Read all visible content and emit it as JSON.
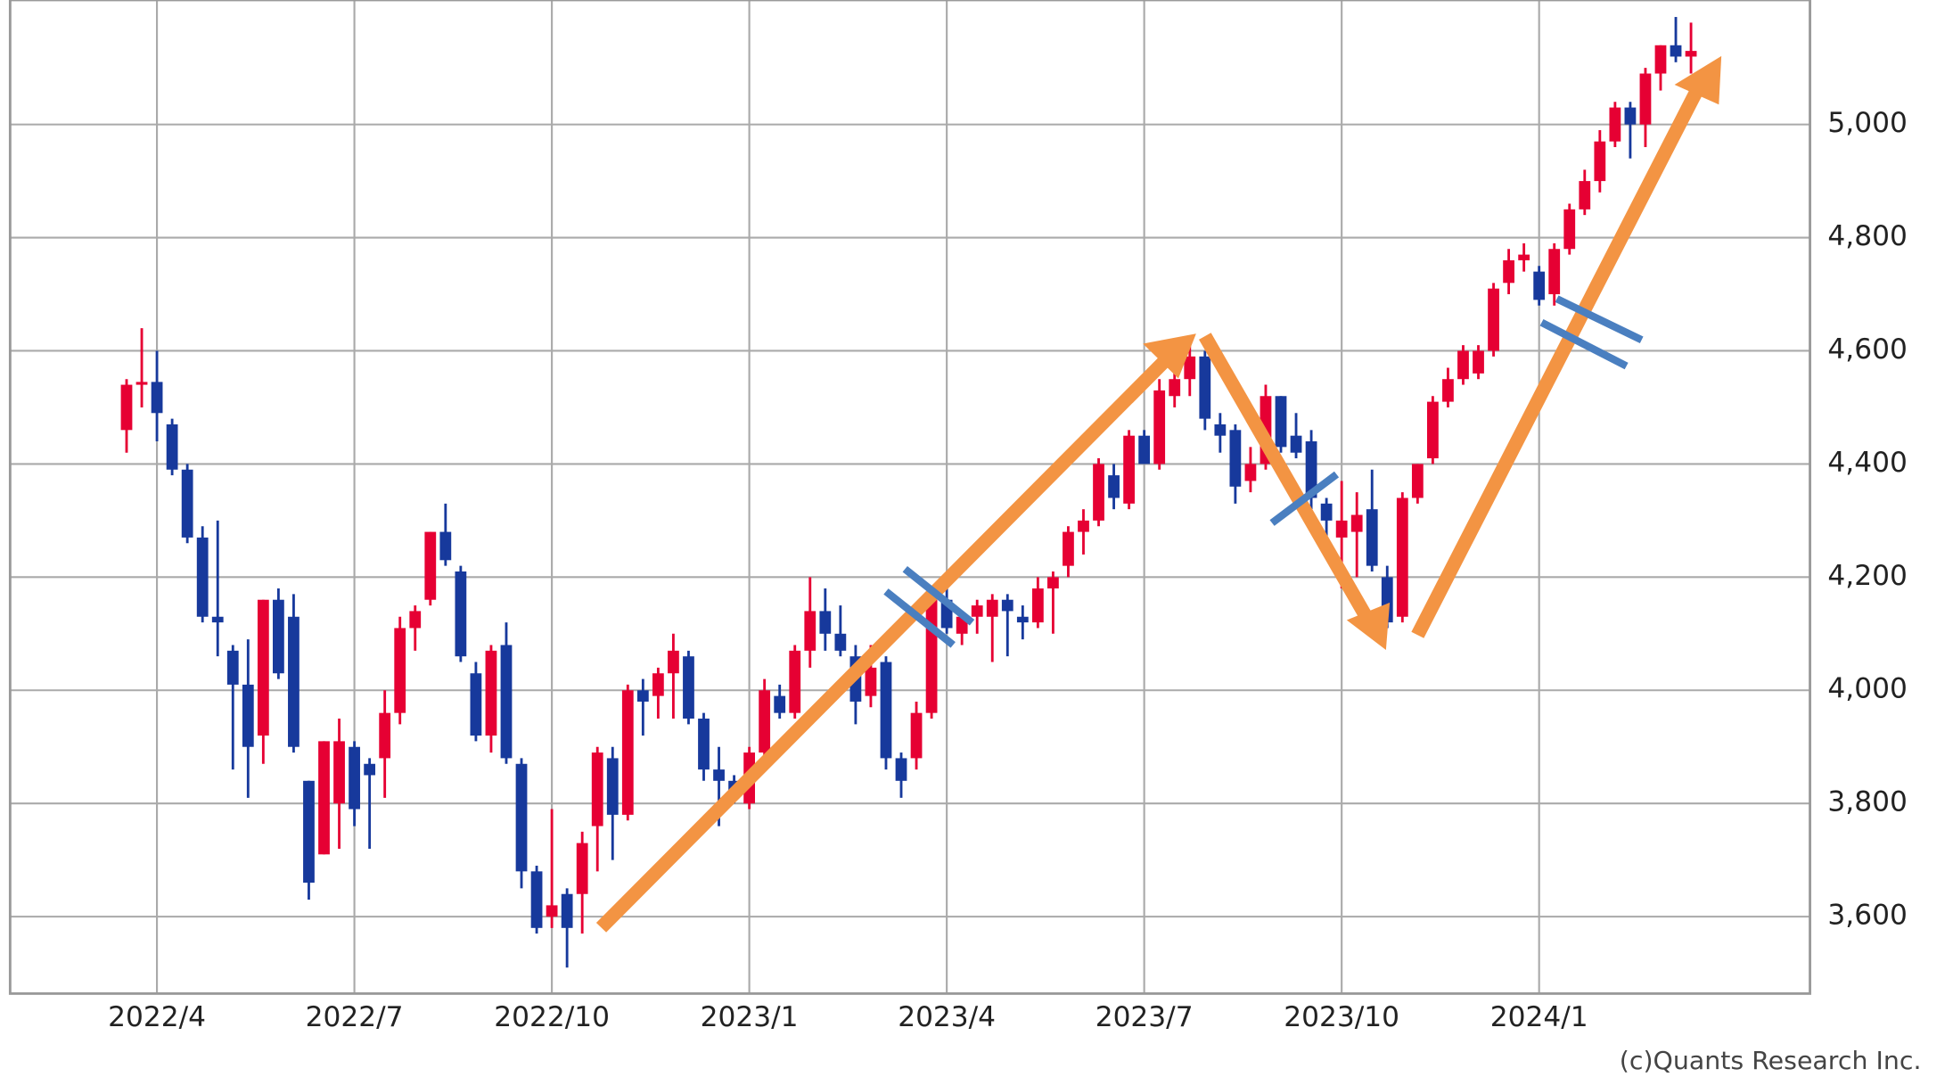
{
  "chart_data": {
    "type": "candlestick",
    "credit": "(c)Quants Research Inc.",
    "categories": [
      null,
      null,
      "2022/4",
      null,
      null,
      null,
      null,
      null,
      null,
      null,
      null,
      null,
      null,
      null,
      null,
      "2022/7",
      null,
      null,
      null,
      null,
      null,
      null,
      null,
      null,
      null,
      null,
      null,
      null,
      "2022/10",
      null,
      null,
      null,
      null,
      null,
      null,
      null,
      null,
      null,
      null,
      null,
      null,
      "2023/1",
      null,
      null,
      null,
      null,
      null,
      null,
      null,
      null,
      null,
      null,
      null,
      null,
      "2023/4",
      null,
      null,
      null,
      null,
      null,
      null,
      null,
      null,
      null,
      null,
      null,
      null,
      "2023/7",
      null,
      null,
      null,
      null,
      null,
      null,
      null,
      null,
      null,
      null,
      null,
      null,
      "2023/10",
      null,
      null,
      null,
      null,
      null,
      null,
      null,
      null,
      null,
      null,
      null,
      null,
      "2024/1",
      null,
      null,
      null,
      null,
      null,
      null,
      null,
      null,
      null,
      null
    ],
    "open": [
      4460,
      4540,
      4545,
      4470,
      4390,
      4270,
      4130,
      4070,
      4010,
      3920,
      4160,
      4130,
      3840,
      3710,
      3800,
      3900,
      3870,
      3880,
      3960,
      4110,
      4160,
      4280,
      4210,
      4030,
      3920,
      4080,
      3870,
      3680,
      3600,
      3640,
      3640,
      3760,
      3880,
      3780,
      4000,
      3990,
      4030,
      4060,
      3950,
      3860,
      3840,
      3800,
      3890,
      3990,
      3960,
      4070,
      4140,
      4100,
      4060,
      3990,
      4050,
      3880,
      3880,
      3960,
      4160,
      4100,
      4130,
      4130,
      4160,
      4130,
      4120,
      4180,
      4220,
      4280,
      4300,
      4380,
      4330,
      4450,
      4400,
      4520,
      4550,
      4590,
      4470,
      4460,
      4370,
      4400,
      4520,
      4450,
      4440,
      4330,
      4270,
      4280,
      4320,
      4200,
      4130,
      4340,
      4410,
      4510,
      4550,
      4560,
      4600,
      4720,
      4760,
      4740,
      4700,
      4780,
      4850,
      4900,
      4970,
      5030,
      5000,
      5090,
      5140,
      5120
    ],
    "high": [
      4550,
      4640,
      4600,
      4480,
      4400,
      4290,
      4300,
      4080,
      4090,
      4160,
      4180,
      4170,
      3840,
      3910,
      3950,
      3910,
      3880,
      4000,
      4130,
      4150,
      4280,
      4330,
      4220,
      4050,
      4080,
      4120,
      3880,
      3690,
      3790,
      3650,
      3750,
      3900,
      3900,
      4010,
      4020,
      4040,
      4100,
      4070,
      3960,
      3900,
      3850,
      3900,
      4020,
      4010,
      4080,
      4200,
      4180,
      4150,
      4080,
      4080,
      4060,
      3890,
      3980,
      4160,
      4190,
      4140,
      4160,
      4170,
      4170,
      4150,
      4200,
      4210,
      4290,
      4320,
      4410,
      4400,
      4460,
      4460,
      4550,
      4570,
      4610,
      4600,
      4490,
      4470,
      4430,
      4540,
      4520,
      4490,
      4460,
      4340,
      4370,
      4350,
      4390,
      4220,
      4350,
      4400,
      4520,
      4570,
      4610,
      4610,
      4720,
      4780,
      4790,
      4750,
      4790,
      4860,
      4920,
      4990,
      5040,
      5040,
      5100,
      5140,
      5190,
      5180
    ],
    "low": [
      4420,
      4500,
      4440,
      4380,
      4260,
      4120,
      4060,
      3860,
      3810,
      3870,
      4020,
      3890,
      3630,
      3710,
      3720,
      3760,
      3720,
      3810,
      3940,
      4070,
      4150,
      4220,
      4050,
      3910,
      3890,
      3870,
      3650,
      3570,
      3580,
      3510,
      3570,
      3680,
      3700,
      3770,
      3920,
      3950,
      3950,
      3940,
      3840,
      3760,
      3800,
      3790,
      3870,
      3950,
      3950,
      4040,
      4070,
      4060,
      3940,
      3970,
      3860,
      3810,
      3860,
      3950,
      4100,
      4080,
      4100,
      4050,
      4060,
      4090,
      4110,
      4100,
      4200,
      4240,
      4290,
      4320,
      4320,
      4400,
      4390,
      4500,
      4520,
      4460,
      4420,
      4330,
      4350,
      4390,
      4420,
      4410,
      4320,
      4270,
      4180,
      4200,
      4210,
      4110,
      4120,
      4330,
      4400,
      4500,
      4540,
      4550,
      4590,
      4700,
      4740,
      4680,
      4680,
      4770,
      4840,
      4880,
      4960,
      4940,
      4960,
      5060,
      5110,
      5090
    ],
    "close": [
      4540,
      4545,
      4490,
      4390,
      4270,
      4130,
      4120,
      4010,
      3900,
      4160,
      4030,
      3900,
      3660,
      3910,
      3910,
      3790,
      3850,
      3960,
      4110,
      4140,
      4280,
      4230,
      4060,
      3920,
      4070,
      3880,
      3680,
      3580,
      3620,
      3580,
      3730,
      3890,
      3780,
      4000,
      3980,
      4030,
      4070,
      3950,
      3860,
      3840,
      3820,
      3890,
      4000,
      3960,
      4070,
      4140,
      4100,
      4070,
      3980,
      4040,
      3880,
      3840,
      3960,
      4160,
      4110,
      4130,
      4150,
      4160,
      4140,
      4120,
      4180,
      4200,
      4280,
      4300,
      4400,
      4340,
      4450,
      4400,
      4530,
      4550,
      4590,
      4480,
      4450,
      4360,
      4400,
      4520,
      4430,
      4420,
      4340,
      4300,
      4300,
      4310,
      4220,
      4120,
      4340,
      4400,
      4510,
      4550,
      4600,
      4600,
      4710,
      4760,
      4770,
      4690,
      4780,
      4850,
      4900,
      4970,
      5030,
      5000,
      5090,
      5140,
      5120,
      5130
    ],
    "up_color": "#e60033",
    "down_color": "#17399c",
    "ylim": [
      3464,
      5220
    ],
    "yticks": [
      {
        "value": 3600,
        "label": "3,600"
      },
      {
        "value": 3800,
        "label": "3,800"
      },
      {
        "value": 4000,
        "label": "4,000"
      },
      {
        "value": 4200,
        "label": "4,200"
      },
      {
        "value": 4400,
        "label": "4,400"
      },
      {
        "value": 4600,
        "label": "4,600"
      },
      {
        "value": 4800,
        "label": "4,800"
      },
      {
        "value": 5000,
        "label": "5,000"
      }
    ],
    "grid": true
  }
}
